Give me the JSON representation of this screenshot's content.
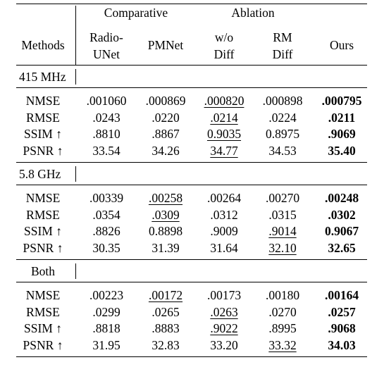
{
  "header": {
    "groups": [
      "Comparative",
      "Ablation"
    ],
    "methods_label": "Methods",
    "columns": [
      [
        "Radio-",
        "UNet"
      ],
      [
        "PMNet"
      ],
      [
        "w/o",
        "Diff"
      ],
      [
        "RM",
        "Diff"
      ],
      [
        "Ours"
      ]
    ]
  },
  "sections": [
    {
      "label": "415 MHz",
      "rows": [
        {
          "metric": "NMSE",
          "values": [
            ".001060",
            ".000869",
            ".000820",
            ".000898",
            ".000795"
          ],
          "underline": [
            2
          ],
          "bold": [
            4
          ]
        },
        {
          "metric": "RMSE",
          "values": [
            ".0243",
            ".0220",
            ".0214",
            ".0224",
            ".0211"
          ],
          "underline": [
            2
          ],
          "bold": [
            4
          ]
        },
        {
          "metric": "SSIM ↑",
          "values": [
            ".8810",
            ".8867",
            "0.9035",
            "0.8975",
            ".9069"
          ],
          "underline": [
            2
          ],
          "bold": [
            4
          ]
        },
        {
          "metric": "PSNR ↑",
          "values": [
            "33.54",
            "34.26",
            "34.77",
            "34.53",
            "35.40"
          ],
          "underline": [
            2
          ],
          "bold": [
            4
          ]
        }
      ]
    },
    {
      "label": "5.8 GHz",
      "rows": [
        {
          "metric": "NMSE",
          "values": [
            ".00339",
            ".00258",
            ".00264",
            ".00270",
            ".00248"
          ],
          "underline": [
            1
          ],
          "bold": [
            4
          ]
        },
        {
          "metric": "RMSE",
          "values": [
            ".0354",
            ".0309",
            ".0312",
            ".0315",
            ".0302"
          ],
          "underline": [
            1
          ],
          "bold": [
            4
          ]
        },
        {
          "metric": "SSIM ↑",
          "values": [
            ".8826",
            "0.8898",
            ".9009",
            ".9014",
            "0.9067"
          ],
          "underline": [
            3
          ],
          "bold": [
            4
          ]
        },
        {
          "metric": "PSNR ↑",
          "values": [
            "30.35",
            "31.39",
            "31.64",
            "32.10",
            "32.65"
          ],
          "underline": [
            3
          ],
          "bold": [
            4
          ]
        }
      ]
    },
    {
      "label": "Both",
      "rows": [
        {
          "metric": "NMSE",
          "values": [
            ".00223",
            ".00172",
            ".00173",
            ".00180",
            ".00164"
          ],
          "underline": [
            1
          ],
          "bold": [
            4
          ]
        },
        {
          "metric": "RMSE",
          "values": [
            ".0299",
            ".0265",
            ".0263",
            ".0270",
            ".0257"
          ],
          "underline": [
            2
          ],
          "bold": [
            4
          ]
        },
        {
          "metric": "SSIM ↑",
          "values": [
            ".8818",
            ".8883",
            ".9022",
            ".8995",
            ".9068"
          ],
          "underline": [
            2
          ],
          "bold": [
            4
          ]
        },
        {
          "metric": "PSNR ↑",
          "values": [
            "31.95",
            "32.83",
            "33.20",
            "33.32",
            "34.03"
          ],
          "underline": [
            3
          ],
          "bold": [
            4
          ]
        }
      ]
    }
  ]
}
